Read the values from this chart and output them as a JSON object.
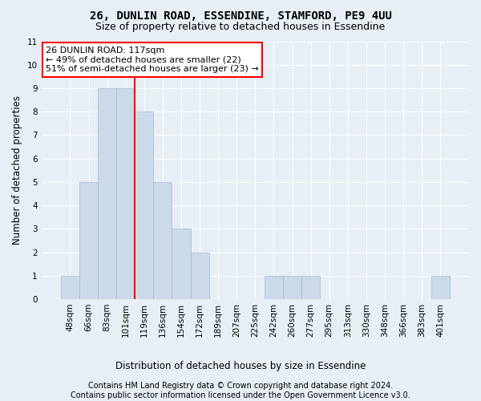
{
  "title": "26, DUNLIN ROAD, ESSENDINE, STAMFORD, PE9 4UU",
  "subtitle": "Size of property relative to detached houses in Essendine",
  "xlabel": "Distribution of detached houses by size in Essendine",
  "ylabel": "Number of detached properties",
  "categories": [
    "48sqm",
    "66sqm",
    "83sqm",
    "101sqm",
    "119sqm",
    "136sqm",
    "154sqm",
    "172sqm",
    "189sqm",
    "207sqm",
    "225sqm",
    "242sqm",
    "260sqm",
    "277sqm",
    "295sqm",
    "313sqm",
    "330sqm",
    "348sqm",
    "366sqm",
    "383sqm",
    "401sqm"
  ],
  "values": [
    1,
    5,
    9,
    9,
    8,
    5,
    3,
    2,
    0,
    0,
    0,
    1,
    1,
    1,
    0,
    0,
    0,
    0,
    0,
    0,
    1
  ],
  "bar_color": "#ccd9e8",
  "bar_edge_color": "#a0b8d0",
  "annotation_text": "26 DUNLIN ROAD: 117sqm\n← 49% of detached houses are smaller (22)\n51% of semi-detached houses are larger (23) →",
  "annotation_box_color": "white",
  "annotation_box_edge": "red",
  "vline_color": "red",
  "vline_x_index": 4,
  "ylim": [
    0,
    11
  ],
  "yticks": [
    0,
    1,
    2,
    3,
    4,
    5,
    6,
    7,
    8,
    9,
    10,
    11
  ],
  "footer": "Contains HM Land Registry data © Crown copyright and database right 2024.\nContains public sector information licensed under the Open Government Licence v3.0.",
  "background_color": "#e8eef5",
  "plot_bg_color": "#e8eef5",
  "grid_color": "white",
  "title_fontsize": 10,
  "subtitle_fontsize": 9,
  "axis_label_fontsize": 8.5,
  "tick_fontsize": 7.5,
  "footer_fontsize": 7,
  "annotation_fontsize": 8
}
